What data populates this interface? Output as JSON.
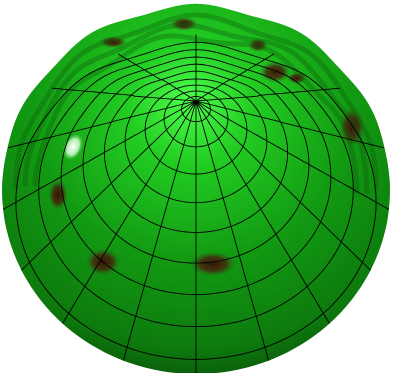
{
  "figure": {
    "subject": "green-dome-surface",
    "colors": {
      "background": "#ffffff",
      "surface_base": "#129a12",
      "surface_highlight": "#4cff4c",
      "surface_shadow": "#0b5c0b",
      "surface_edge": "#0a4f0a",
      "spot": "#3a0d08",
      "specular": "#ffffff",
      "mesh_line": "#000000"
    },
    "mesh": {
      "rings": 9,
      "meridians": 16
    },
    "spot_count": 9
  }
}
